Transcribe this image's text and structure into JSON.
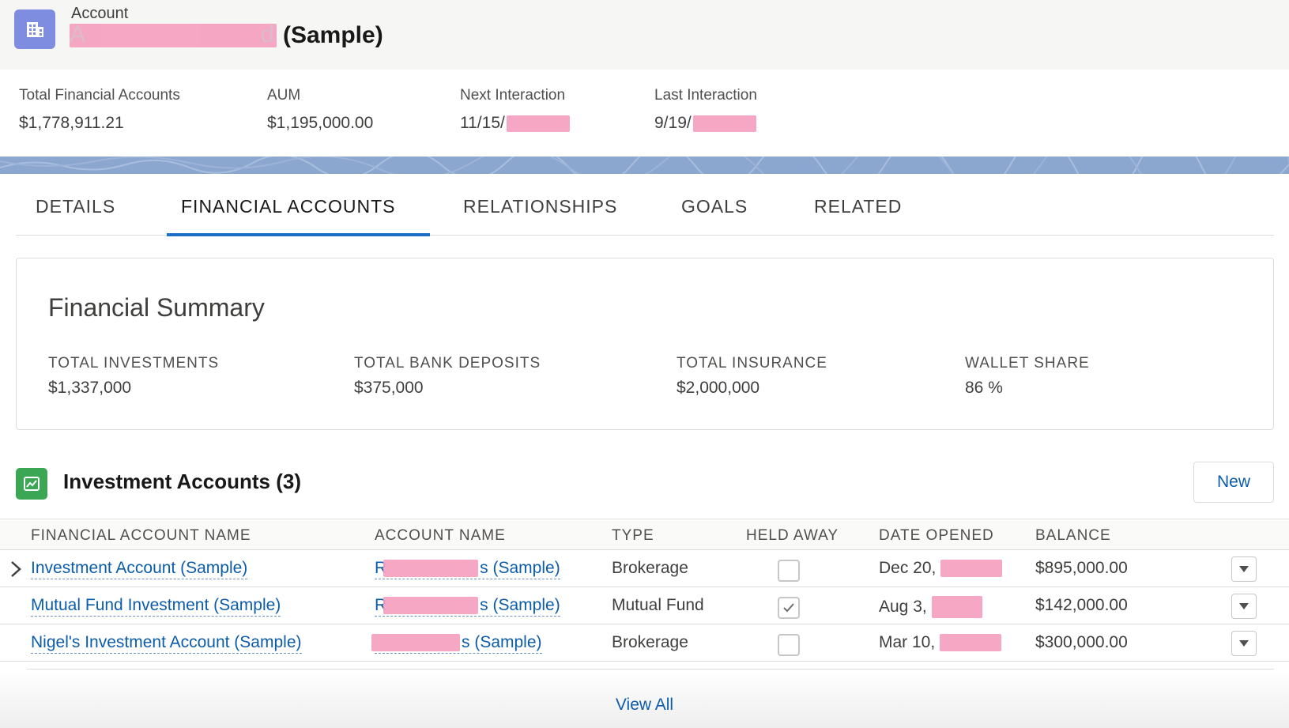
{
  "header": {
    "object_label": "Account",
    "title_visible_prefix": "A",
    "title_visible_suffix_char": "d",
    "title_suffix": "(Sample)",
    "icon": "account-building-icon"
  },
  "highlights": [
    {
      "label": "Total Financial Accounts",
      "value": "$1,778,911.21"
    },
    {
      "label": "AUM",
      "value": "$1,195,000.00"
    },
    {
      "label": "Next Interaction",
      "value": "11/15/"
    },
    {
      "label": "Last Interaction",
      "value": "9/19/"
    }
  ],
  "tabs": [
    {
      "label": "DETAILS"
    },
    {
      "label": "FINANCIAL ACCOUNTS"
    },
    {
      "label": "RELATIONSHIPS"
    },
    {
      "label": "GOALS"
    },
    {
      "label": "RELATED"
    }
  ],
  "summary": {
    "title": "Financial Summary",
    "items": [
      {
        "label": "TOTAL INVESTMENTS",
        "value": "$1,337,000"
      },
      {
        "label": "TOTAL BANK DEPOSITS",
        "value": "$375,000"
      },
      {
        "label": "TOTAL INSURANCE",
        "value": "$2,000,000"
      },
      {
        "label": "WALLET SHARE",
        "value": "86 %"
      }
    ]
  },
  "related_list": {
    "title": "Investment Accounts (3)",
    "new_label": "New",
    "columns": [
      "FINANCIAL ACCOUNT NAME",
      "ACCOUNT NAME",
      "TYPE",
      "HELD AWAY",
      "DATE OPENED",
      "BALANCE"
    ],
    "rows": [
      {
        "name": "Investment Account (Sample)",
        "account_prefix": "R",
        "account_suffix": "s (Sample)",
        "type": "Brokerage",
        "held_away": false,
        "date": "Dec 20,",
        "balance": "$895,000.00"
      },
      {
        "name": "Mutual Fund Investment (Sample)",
        "account_prefix": "R",
        "account_suffix": "s (Sample)",
        "type": "Mutual Fund",
        "held_away": true,
        "date": "Aug 3,",
        "balance": "$142,000.00"
      },
      {
        "name": "Nigel's Investment Account (Sample)",
        "account_prefix": "",
        "account_suffix": "s (Sample)",
        "type": "Brokerage",
        "held_away": false,
        "date": "Mar 10,",
        "balance": "$300,000.00"
      }
    ],
    "view_all_label": "View All"
  },
  "colors": {
    "brand_blue": "#0b5cab",
    "tab_active": "#1b6fc9",
    "account_icon": "#7f8de1",
    "related_icon": "#3ba755",
    "redaction": "#f5a0bf",
    "band": "#8ba6cf"
  }
}
